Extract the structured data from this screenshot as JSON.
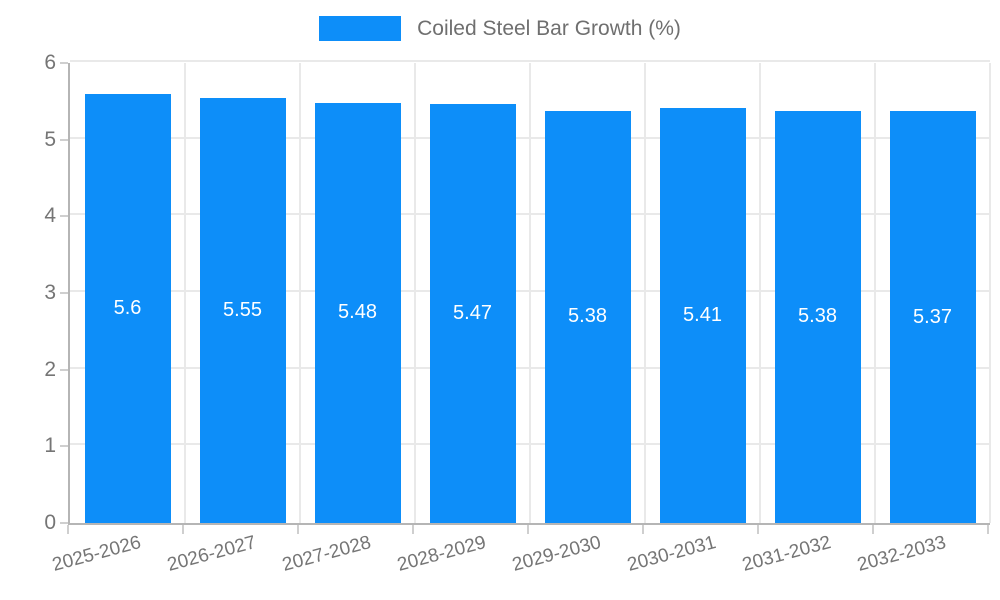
{
  "chart_data": {
    "type": "bar",
    "title": "",
    "legend": [
      "Coiled Steel Bar Growth (%)"
    ],
    "legend_position": "top-center",
    "categories": [
      "2025-2026",
      "2026-2027",
      "2027-2028",
      "2028-2029",
      "2029-2030",
      "2030-2031",
      "2031-2032",
      "2032-2033"
    ],
    "values": [
      5.6,
      5.55,
      5.48,
      5.47,
      5.38,
      5.41,
      5.38,
      5.37
    ],
    "value_labels": [
      "5.6",
      "5.55",
      "5.48",
      "5.47",
      "5.38",
      "5.41",
      "5.38",
      "5.37"
    ],
    "xlabel": "",
    "ylabel": "",
    "ylim": [
      0,
      6
    ],
    "yticks": [
      0,
      1,
      2,
      3,
      4,
      5,
      6
    ],
    "grid": true,
    "bar_color": "#0d8ef9",
    "value_label_color": "#ffffff",
    "axis_text_color": "#757575"
  }
}
